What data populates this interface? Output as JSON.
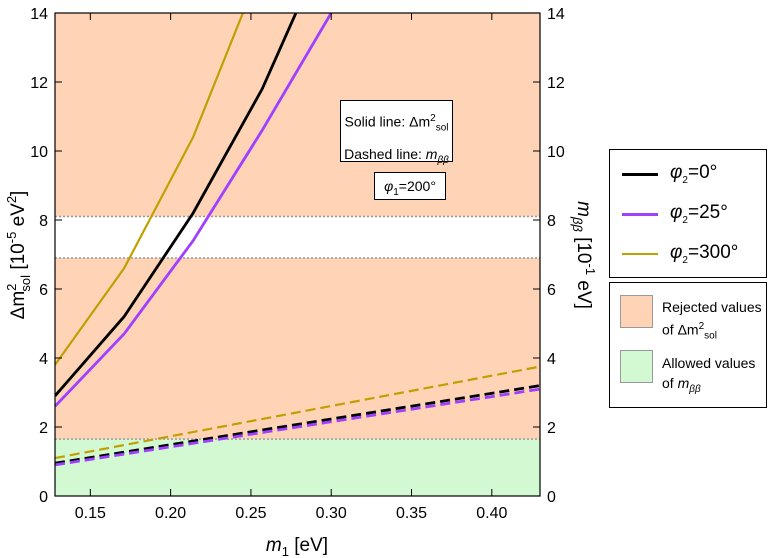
{
  "colors": {
    "rejected_fill": "#ffd3b6",
    "allowed_fill": "#d3f9d3",
    "band_edge": "#999999",
    "phi0": "#000000",
    "phi25": "#a040ff",
    "phi300": "#c0a000"
  },
  "chart_data": {
    "type": "line",
    "xlabel": {
      "main": "m",
      "sub": "1",
      "unit": " [eV]"
    },
    "ylabel_left": {
      "main": "Δm",
      "sup": "2",
      "sub": "sol",
      "unit": " [10",
      "unit_sup": "-5",
      "unit_tail": " eV",
      "unit_sup2": "2",
      "close": "]"
    },
    "ylabel_right": {
      "main": "m",
      "sub": "ββ",
      "unit": " [10",
      "unit_sup": "-1",
      "close": " eV]"
    },
    "xlim": [
      0.128,
      0.43
    ],
    "ylim": [
      0,
      14
    ],
    "xticks": [
      0.15,
      0.2,
      0.25,
      0.3,
      0.35,
      0.4
    ],
    "xtick_labels": [
      "0.15",
      "0.20",
      "0.25",
      "0.30",
      "0.35",
      "0.40"
    ],
    "yticks": [
      0,
      2,
      4,
      6,
      8,
      10,
      12,
      14
    ],
    "ytick_labels": [
      "0",
      "2",
      "4",
      "6",
      "8",
      "10",
      "12",
      "14"
    ],
    "bands": [
      {
        "name": "rejected-lower",
        "y0": 1.65,
        "y1": 6.9,
        "kind": "rejected"
      },
      {
        "name": "rejected-upper",
        "y0": 8.1,
        "y1": 14,
        "kind": "rejected"
      },
      {
        "name": "allowed",
        "y0": 0,
        "y1": 1.65,
        "kind": "allowed"
      }
    ],
    "series": [
      {
        "name": "phi2-0-solid",
        "label": "φ2=0°",
        "color_key": "phi0",
        "style": "solid",
        "x": [
          0.128,
          0.171,
          0.214,
          0.257,
          0.278
        ],
        "y": [
          2.9,
          5.2,
          8.2,
          11.8,
          14.0
        ]
      },
      {
        "name": "phi2-25-solid",
        "label": "φ2=25°",
        "color_key": "phi25",
        "style": "solid",
        "x": [
          0.128,
          0.171,
          0.214,
          0.257,
          0.3
        ],
        "y": [
          2.6,
          4.7,
          7.4,
          10.6,
          14.0
        ]
      },
      {
        "name": "phi2-300-solid",
        "label": "φ2=300°",
        "color_key": "phi300",
        "style": "solid",
        "x": [
          0.128,
          0.171,
          0.214,
          0.245
        ],
        "y": [
          3.8,
          6.6,
          10.4,
          14.0
        ]
      },
      {
        "name": "phi2-0-dashed",
        "label": "φ2=0°",
        "color_key": "phi0",
        "style": "dashed",
        "x": [
          0.128,
          0.43
        ],
        "y": [
          0.95,
          3.2
        ]
      },
      {
        "name": "phi2-25-dashed",
        "label": "φ2=25°",
        "color_key": "phi25",
        "style": "dashed",
        "x": [
          0.128,
          0.43
        ],
        "y": [
          0.9,
          3.1
        ]
      },
      {
        "name": "phi2-300-dashed",
        "label": "φ2=300°",
        "color_key": "phi300",
        "style": "dashed",
        "x": [
          0.128,
          0.43
        ],
        "y": [
          1.1,
          3.75
        ]
      }
    ]
  },
  "annotations": {
    "solid_prefix": "Solid line: ",
    "solid_delta": "Δm",
    "solid_sup": "2",
    "solid_sub": "sol",
    "dashed_prefix": "Dashed line: ",
    "dashed_m": "m",
    "dashed_sub": "ββ",
    "phi1_sym": "φ",
    "phi1_sub": "1",
    "phi1_val": "=200°"
  },
  "legend": {
    "items": [
      {
        "sym": "φ",
        "sub": "2",
        "val": "=0°"
      },
      {
        "sym": "φ",
        "sub": "2",
        "val": "=25°"
      },
      {
        "sym": "φ",
        "sub": "2",
        "val": "=300°"
      }
    ],
    "rejected_line1": "Rejected values",
    "rejected_line2_prefix": "of Δm",
    "rejected_sup": "2",
    "rejected_sub": "sol",
    "allowed_line1": "Allowed values",
    "allowed_line2_prefix": "of ",
    "allowed_m": "m",
    "allowed_sub": "ββ"
  }
}
